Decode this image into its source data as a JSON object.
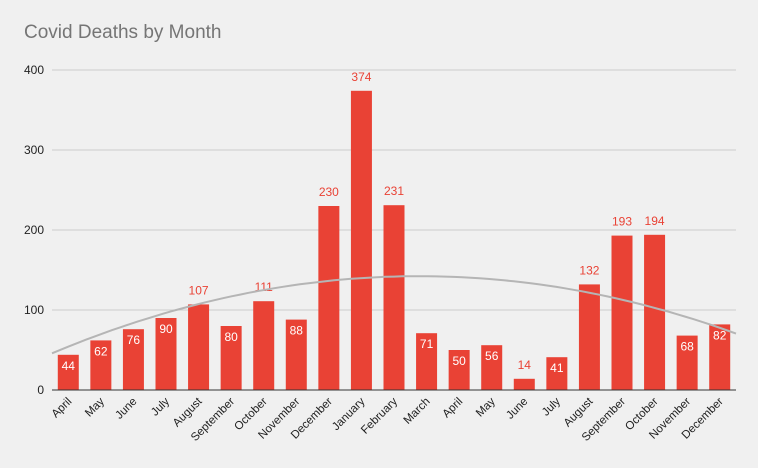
{
  "chart_data": {
    "type": "bar",
    "title": "Covid Deaths by Month",
    "xlabel": "",
    "ylabel": "",
    "categories": [
      "April",
      "May",
      "June",
      "July",
      "August",
      "September",
      "October",
      "November",
      "December",
      "January",
      "February",
      "March",
      "April",
      "May",
      "June",
      "July",
      "August",
      "September",
      "October",
      "November",
      "December"
    ],
    "values": [
      44,
      62,
      76,
      90,
      107,
      80,
      111,
      88,
      230,
      374,
      231,
      71,
      50,
      56,
      14,
      41,
      132,
      193,
      194,
      68,
      82
    ],
    "ylim": [
      0,
      400
    ],
    "yticks": [
      "0",
      "100",
      "200",
      "300",
      "400"
    ],
    "grid": true,
    "legend": "none",
    "trendline": {
      "type": "polynomial",
      "degree": 2
    },
    "colors": {
      "bar": "#e94235",
      "label_inside": "#ffffff",
      "label_outside": "#e94235",
      "trendline": "#b5b5b5",
      "grid": "#cccccc",
      "baseline": "#333333"
    }
  }
}
